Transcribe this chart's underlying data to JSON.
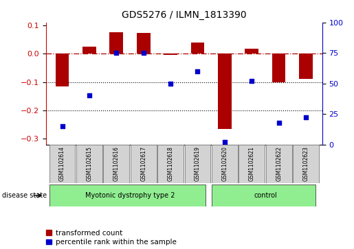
{
  "title": "GDS5276 / ILMN_1813390",
  "samples": [
    "GSM1102614",
    "GSM1102615",
    "GSM1102616",
    "GSM1102617",
    "GSM1102618",
    "GSM1102619",
    "GSM1102620",
    "GSM1102621",
    "GSM1102622",
    "GSM1102623"
  ],
  "transformed_count": [
    -0.115,
    0.025,
    0.075,
    0.072,
    -0.005,
    0.038,
    -0.265,
    0.018,
    -0.1,
    -0.09
  ],
  "percentile_rank": [
    15,
    40,
    75,
    75,
    50,
    60,
    2,
    52,
    18,
    22
  ],
  "groups": [
    {
      "label": "Myotonic dystrophy type 2",
      "start": 0,
      "end": 6,
      "color": "#90ee90"
    },
    {
      "label": "control",
      "start": 6,
      "end": 10,
      "color": "#90ee90"
    }
  ],
  "disease_state_label": "disease state",
  "bar_color": "#aa0000",
  "dot_color": "#0000cc",
  "ylim_left": [
    -0.32,
    0.11
  ],
  "ylim_right": [
    0,
    100
  ],
  "yticks_left": [
    -0.3,
    -0.2,
    -0.1,
    0.0,
    0.1
  ],
  "yticks_right": [
    0,
    25,
    50,
    75,
    100
  ],
  "hline_y": 0.0,
  "dotted_lines": [
    -0.1,
    -0.2
  ],
  "legend_red_label": "transformed count",
  "legend_blue_label": "percentile rank within the sample",
  "background_color": "#ffffff",
  "sample_box_color": "#d3d3d3",
  "figsize": [
    5.15,
    3.63
  ],
  "dpi": 100
}
